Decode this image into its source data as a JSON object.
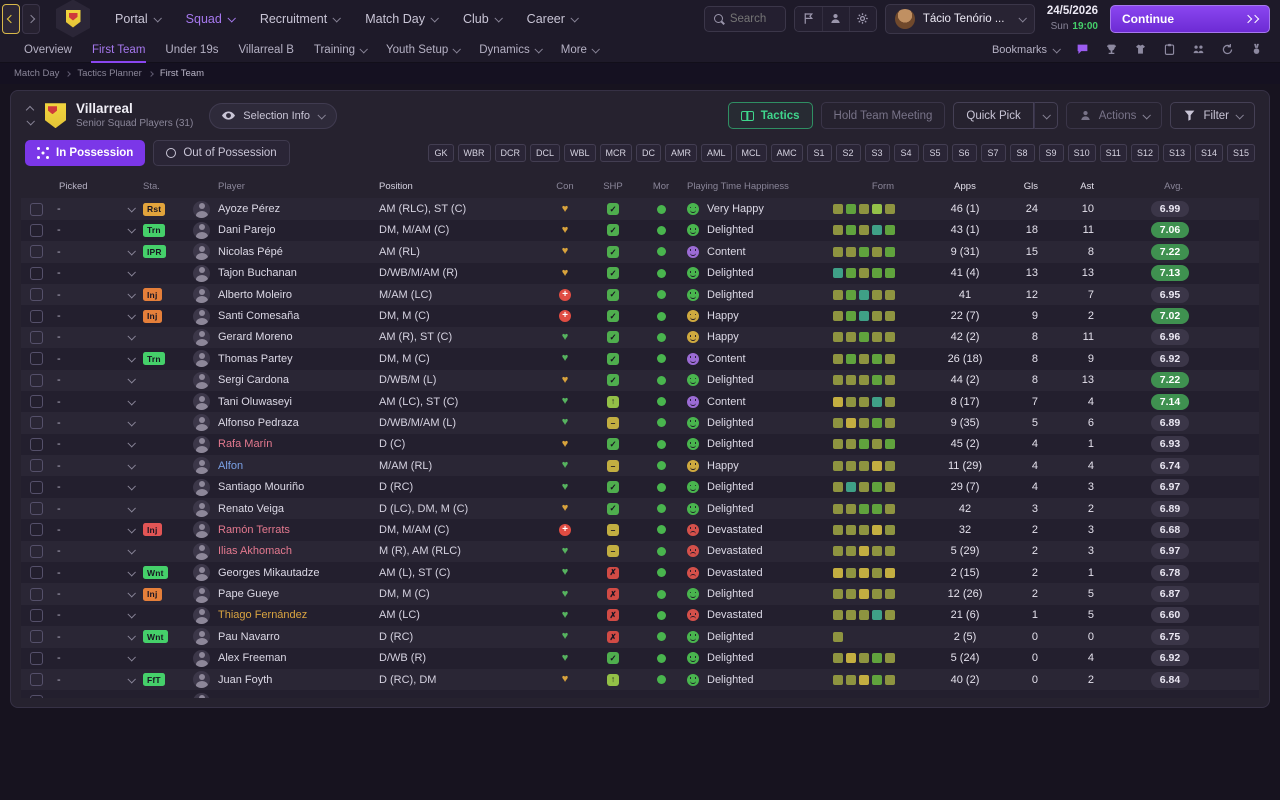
{
  "topbar": {
    "nav": [
      {
        "id": "portal",
        "label": "Portal"
      },
      {
        "id": "squad",
        "label": "Squad",
        "active": true
      },
      {
        "id": "recruitment",
        "label": "Recruitment"
      },
      {
        "id": "match-day",
        "label": "Match Day"
      },
      {
        "id": "club",
        "label": "Club"
      },
      {
        "id": "career",
        "label": "Career"
      }
    ],
    "search_placeholder": "Search",
    "manager_name": "Tácio Tenório ...",
    "date": "24/5/2026",
    "day": "Sun",
    "time": "19:00",
    "continue_label": "Continue"
  },
  "subnav": {
    "items": [
      {
        "id": "overview",
        "label": "Overview"
      },
      {
        "id": "first-team",
        "label": "First Team",
        "active": true
      },
      {
        "id": "under-19s",
        "label": "Under 19s"
      },
      {
        "id": "villarreal-b",
        "label": "Villarreal B"
      },
      {
        "id": "training",
        "label": "Training",
        "menu": true
      },
      {
        "id": "youth-setup",
        "label": "Youth Setup",
        "menu": true
      },
      {
        "id": "dynamics",
        "label": "Dynamics",
        "menu": true
      },
      {
        "id": "more",
        "label": "More",
        "menu": true
      }
    ],
    "bookmarks_label": "Bookmarks"
  },
  "breadcrumb": [
    "Match Day",
    "Tactics Planner",
    "First Team"
  ],
  "panel": {
    "club_name": "Villarreal",
    "subtitle": "Senior Squad Players (31)",
    "selection_info": "Selection Info",
    "tactics": "Tactics",
    "hold_team_meeting": "Hold Team Meeting",
    "quick_pick": "Quick Pick",
    "actions": "Actions",
    "filter": "Filter",
    "tab_in_possession": "In Possession",
    "tab_out_possession": "Out of Possession",
    "position_buttons": [
      "GK",
      "WBR",
      "DCR",
      "DCL",
      "WBL",
      "MCR",
      "DC",
      "AMR",
      "AML",
      "MCL",
      "AMC",
      "S1",
      "S2",
      "S3",
      "S4",
      "S5",
      "S6",
      "S7",
      "S8",
      "S9",
      "S10",
      "S11",
      "S12",
      "S13",
      "S14",
      "S15"
    ]
  },
  "table": {
    "columns": [
      "Picked",
      "Sta.",
      "Player",
      "Position",
      "Con",
      "SHP",
      "Mor",
      "Playing Time Happiness",
      "Form",
      "Apps",
      "Gls",
      "Ast",
      "Avg."
    ],
    "rows": [
      {
        "picked": "-",
        "status": {
          "label": "Rst",
          "color": "#e2a43c"
        },
        "name": "Ayoze Pérez",
        "position": "AM (RLC), ST (C)",
        "con": {
          "type": "heart",
          "color": "#d9a33c"
        },
        "shp": "check",
        "mor": "#49b54e",
        "hap": {
          "label": "Very Happy",
          "color": "#49b54e",
          "face": "smile"
        },
        "form": [
          "#8e9440",
          "#60a33d",
          "#8e9440",
          "#94c149",
          "#8e9440"
        ],
        "apps": "46 (1)",
        "gls": "24",
        "ast": "10",
        "avg": "6.99",
        "avg_hi": false
      },
      {
        "picked": "-",
        "status": {
          "label": "Trn",
          "color": "#45d06a"
        },
        "name": "Dani Parejo",
        "position": "DM, M/AM (C)",
        "con": {
          "type": "heart",
          "color": "#d9a33c"
        },
        "shp": "check",
        "mor": "#49b54e",
        "hap": {
          "label": "Delighted",
          "color": "#49b54e",
          "face": "smile"
        },
        "form": [
          "#8e9440",
          "#60a33d",
          "#8e9440",
          "#3fa087",
          "#60a33d"
        ],
        "apps": "43 (1)",
        "gls": "18",
        "ast": "11",
        "avg": "7.06",
        "avg_hi": true
      },
      {
        "picked": "-",
        "status": {
          "label": "IPR",
          "color": "#45d06a"
        },
        "name": "Nicolas Pépé",
        "position": "AM (RL)",
        "con": {
          "type": "heart",
          "color": "#d9a33c"
        },
        "shp": "check",
        "mor": "#49b54e",
        "hap": {
          "label": "Content",
          "color": "#9b6bd4",
          "face": "smile"
        },
        "form": [
          "#8e9440",
          "#8e9440",
          "#60a33d",
          "#8e9440",
          "#60a33d"
        ],
        "apps": "9 (31)",
        "gls": "15",
        "ast": "8",
        "avg": "7.22",
        "avg_hi": true
      },
      {
        "picked": "-",
        "name": "Tajon Buchanan",
        "position": "D/WB/M/AM (R)",
        "con": {
          "type": "heart",
          "color": "#d9a33c"
        },
        "shp": "check",
        "mor": "#49b54e",
        "hap": {
          "label": "Delighted",
          "color": "#49b54e",
          "face": "smile"
        },
        "form": [
          "#3fa087",
          "#60a33d",
          "#8e9440",
          "#60a33d",
          "#60a33d"
        ],
        "apps": "41 (4)",
        "gls": "13",
        "ast": "13",
        "avg": "7.13",
        "avg_hi": true
      },
      {
        "picked": "-",
        "status": {
          "label": "Inj",
          "color": "#e57f3a"
        },
        "name": "Alberto Moleiro",
        "position": "M/AM (LC)",
        "con": {
          "type": "cross"
        },
        "shp": "check",
        "mor": "#49b54e",
        "hap": {
          "label": "Delighted",
          "color": "#49b54e",
          "face": "smile"
        },
        "form": [
          "#8e9440",
          "#60a33d",
          "#3fa087",
          "#8e9440",
          "#8e9440"
        ],
        "apps": "41",
        "gls": "12",
        "ast": "7",
        "avg": "6.95",
        "avg_hi": false
      },
      {
        "picked": "-",
        "status": {
          "label": "Inj",
          "color": "#e57f3a"
        },
        "name": "Santi Comesaña",
        "position": "DM, M (C)",
        "con": {
          "type": "cross"
        },
        "shp": "check",
        "mor": "#49b54e",
        "hap": {
          "label": "Happy",
          "color": "#cfa93f",
          "face": "smile"
        },
        "form": [
          "#8e9440",
          "#60a33d",
          "#3fa087",
          "#8e9440",
          "#8e9440"
        ],
        "apps": "22 (7)",
        "gls": "9",
        "ast": "2",
        "avg": "7.02",
        "avg_hi": true
      },
      {
        "picked": "-",
        "name": "Gerard Moreno",
        "position": "AM (R), ST (C)",
        "con": {
          "type": "heart",
          "color": "#56b35f"
        },
        "shp": "check",
        "mor": "#49b54e",
        "hap": {
          "label": "Happy",
          "color": "#cfa93f",
          "face": "smile"
        },
        "form": [
          "#8e9440",
          "#8e9440",
          "#60a33d",
          "#8e9440",
          "#8e9440"
        ],
        "apps": "42 (2)",
        "gls": "8",
        "ast": "11",
        "avg": "6.96",
        "avg_hi": false
      },
      {
        "picked": "-",
        "status": {
          "label": "Trn",
          "color": "#45d06a"
        },
        "name": "Thomas Partey",
        "position": "DM, M (C)",
        "con": {
          "type": "heart",
          "color": "#56b35f"
        },
        "shp": "check",
        "mor": "#49b54e",
        "hap": {
          "label": "Content",
          "color": "#9b6bd4",
          "face": "smile"
        },
        "form": [
          "#8e9440",
          "#60a33d",
          "#8e9440",
          "#60a33d",
          "#8e9440"
        ],
        "apps": "26 (18)",
        "gls": "8",
        "ast": "9",
        "avg": "6.92",
        "avg_hi": false
      },
      {
        "picked": "-",
        "name": "Sergi Cardona",
        "position": "D/WB/M (L)",
        "con": {
          "type": "heart",
          "color": "#d9a33c"
        },
        "shp": "check",
        "mor": "#49b54e",
        "hap": {
          "label": "Delighted",
          "color": "#49b54e",
          "face": "smile"
        },
        "form": [
          "#8e9440",
          "#8e9440",
          "#8e9440",
          "#60a33d",
          "#8e9440"
        ],
        "apps": "44 (2)",
        "gls": "8",
        "ast": "13",
        "avg": "7.22",
        "avg_hi": true
      },
      {
        "picked": "-",
        "name": "Tani Oluwaseyi",
        "position": "AM (LC), ST (C)",
        "con": {
          "type": "heart",
          "color": "#56b35f"
        },
        "shp": "up",
        "mor": "#49b54e",
        "hap": {
          "label": "Content",
          "color": "#9b6bd4",
          "face": "smile"
        },
        "form": [
          "#c3ae41",
          "#8e9440",
          "#8e9440",
          "#3fa087",
          "#8e9440"
        ],
        "apps": "8 (17)",
        "gls": "7",
        "ast": "4",
        "avg": "7.14",
        "avg_hi": true
      },
      {
        "picked": "-",
        "name": "Alfonso Pedraza",
        "position": "D/WB/M/AM (L)",
        "con": {
          "type": "heart",
          "color": "#56b35f"
        },
        "shp": "dash",
        "mor": "#49b54e",
        "hap": {
          "label": "Delighted",
          "color": "#49b54e",
          "face": "smile"
        },
        "form": [
          "#8e9440",
          "#c3ae41",
          "#8e9440",
          "#60a33d",
          "#8e9440"
        ],
        "apps": "9 (35)",
        "gls": "5",
        "ast": "6",
        "avg": "6.89",
        "avg_hi": false
      },
      {
        "picked": "-",
        "name": "Rafa Marín",
        "name_color": "#e4798f",
        "position": "D (C)",
        "con": {
          "type": "heart",
          "color": "#d9a33c"
        },
        "shp": "check",
        "mor": "#49b54e",
        "hap": {
          "label": "Delighted",
          "color": "#49b54e",
          "face": "smile"
        },
        "form": [
          "#8e9440",
          "#8e9440",
          "#60a33d",
          "#8e9440",
          "#60a33d"
        ],
        "apps": "45 (2)",
        "gls": "4",
        "ast": "1",
        "avg": "6.93",
        "avg_hi": false
      },
      {
        "picked": "-",
        "name": "Alfon",
        "name_color": "#7aa0e4",
        "position": "M/AM (RL)",
        "con": {
          "type": "heart",
          "color": "#56b35f"
        },
        "shp": "dash",
        "mor": "#49b54e",
        "hap": {
          "label": "Happy",
          "color": "#cfa93f",
          "face": "smile"
        },
        "form": [
          "#8e9440",
          "#8e9440",
          "#8e9440",
          "#c3ae41",
          "#8e9440"
        ],
        "apps": "11 (29)",
        "gls": "4",
        "ast": "4",
        "avg": "6.74",
        "avg_hi": false
      },
      {
        "picked": "-",
        "name": "Santiago Mouriño",
        "position": "D (RC)",
        "con": {
          "type": "heart",
          "color": "#56b35f"
        },
        "shp": "check",
        "mor": "#49b54e",
        "hap": {
          "label": "Delighted",
          "color": "#49b54e",
          "face": "smile"
        },
        "form": [
          "#8e9440",
          "#3fa087",
          "#8e9440",
          "#60a33d",
          "#8e9440"
        ],
        "apps": "29 (7)",
        "gls": "4",
        "ast": "3",
        "avg": "6.97",
        "avg_hi": false
      },
      {
        "picked": "-",
        "name": "Renato Veiga",
        "position": "D (LC), DM, M (C)",
        "con": {
          "type": "heart",
          "color": "#d9a33c"
        },
        "shp": "check",
        "mor": "#49b54e",
        "hap": {
          "label": "Delighted",
          "color": "#49b54e",
          "face": "smile"
        },
        "form": [
          "#8e9440",
          "#8e9440",
          "#60a33d",
          "#60a33d",
          "#8e9440"
        ],
        "apps": "42",
        "gls": "3",
        "ast": "2",
        "avg": "6.89",
        "avg_hi": false
      },
      {
        "picked": "-",
        "status": {
          "label": "Inj",
          "color": "#e25555"
        },
        "name": "Ramón Terrats",
        "name_color": "#e4798f",
        "position": "DM, M/AM (C)",
        "con": {
          "type": "cross"
        },
        "shp": "dash",
        "mor": "#49b54e",
        "hap": {
          "label": "Devastated",
          "color": "#d4504a",
          "face": "frown"
        },
        "form": [
          "#8e9440",
          "#8e9440",
          "#8e9440",
          "#c3ae41",
          "#8e9440"
        ],
        "apps": "32",
        "gls": "2",
        "ast": "3",
        "avg": "6.68",
        "avg_hi": false
      },
      {
        "picked": "-",
        "name": "Ilias Akhomach",
        "name_color": "#e4798f",
        "position": "M (R), AM (RLC)",
        "con": {
          "type": "heart",
          "color": "#56b35f"
        },
        "shp": "dash",
        "mor": "#49b54e",
        "hap": {
          "label": "Devastated",
          "color": "#d4504a",
          "face": "frown"
        },
        "form": [
          "#8e9440",
          "#8e9440",
          "#c3ae41",
          "#8e9440",
          "#8e9440"
        ],
        "apps": "5 (29)",
        "gls": "2",
        "ast": "3",
        "avg": "6.97",
        "avg_hi": false
      },
      {
        "picked": "-",
        "status": {
          "label": "Wnt",
          "color": "#45d06a"
        },
        "name": "Georges Mikautadze",
        "position": "AM (L), ST (C)",
        "con": {
          "type": "heart",
          "color": "#56b35f"
        },
        "shp": "cross",
        "mor": "#49b54e",
        "hap": {
          "label": "Devastated",
          "color": "#d4504a",
          "face": "frown"
        },
        "form": [
          "#c3ae41",
          "#8e9440",
          "#c3ae41",
          "#8e9440",
          "#c3ae41"
        ],
        "apps": "2 (15)",
        "gls": "2",
        "ast": "1",
        "avg": "6.78",
        "avg_hi": false
      },
      {
        "picked": "-",
        "status": {
          "label": "Inj",
          "color": "#e57f3a"
        },
        "name": "Pape Gueye",
        "position": "DM, M (C)",
        "con": {
          "type": "heart",
          "color": "#56b35f"
        },
        "shp": "cross",
        "mor": "#49b54e",
        "hap": {
          "label": "Delighted",
          "color": "#49b54e",
          "face": "smile"
        },
        "form": [
          "#8e9440",
          "#8e9440",
          "#c3ae41",
          "#8e9440",
          "#8e9440"
        ],
        "apps": "12 (26)",
        "gls": "2",
        "ast": "5",
        "avg": "6.87",
        "avg_hi": false
      },
      {
        "picked": "-",
        "name": "Thiago Fernández",
        "name_color": "#d9a441",
        "position": "AM (LC)",
        "con": {
          "type": "heart",
          "color": "#56b35f"
        },
        "shp": "cross",
        "mor": "#49b54e",
        "hap": {
          "label": "Devastated",
          "color": "#d4504a",
          "face": "frown"
        },
        "form": [
          "#8e9440",
          "#8e9440",
          "#8e9440",
          "#3fa087",
          "#8e9440"
        ],
        "apps": "21 (6)",
        "gls": "1",
        "ast": "5",
        "avg": "6.60",
        "avg_hi": false
      },
      {
        "picked": "-",
        "status": {
          "label": "Wnt",
          "color": "#45d06a"
        },
        "name": "Pau Navarro",
        "position": "D (RC)",
        "con": {
          "type": "heart",
          "color": "#56b35f"
        },
        "shp": "cross",
        "mor": "#49b54e",
        "hap": {
          "label": "Delighted",
          "color": "#49b54e",
          "face": "smile"
        },
        "form": [
          "#8e9440"
        ],
        "apps": "2 (5)",
        "gls": "0",
        "ast": "0",
        "avg": "6.75",
        "avg_hi": false
      },
      {
        "picked": "-",
        "name": "Alex Freeman",
        "position": "D/WB (R)",
        "con": {
          "type": "heart",
          "color": "#56b35f"
        },
        "shp": "check",
        "mor": "#49b54e",
        "hap": {
          "label": "Delighted",
          "color": "#49b54e",
          "face": "smile"
        },
        "form": [
          "#8e9440",
          "#c3ae41",
          "#8e9440",
          "#60a33d",
          "#8e9440"
        ],
        "apps": "5 (24)",
        "gls": "0",
        "ast": "4",
        "avg": "6.92",
        "avg_hi": false
      },
      {
        "picked": "-",
        "status": {
          "label": "FfT",
          "color": "#45d06a"
        },
        "name": "Juan Foyth",
        "position": "D (RC), DM",
        "con": {
          "type": "heart",
          "color": "#d9a33c"
        },
        "shp": "up",
        "mor": "#49b54e",
        "hap": {
          "label": "Delighted",
          "color": "#49b54e",
          "face": "smile"
        },
        "form": [
          "#8e9440",
          "#8e9440",
          "#c3ae41",
          "#60a33d",
          "#8e9440"
        ],
        "apps": "40 (2)",
        "gls": "0",
        "ast": "2",
        "avg": "6.84",
        "avg_hi": false
      },
      {
        "partial": true,
        "picked": "-",
        "name": "",
        "position": "",
        "shp": "none",
        "mor": "",
        "hap": {
          "label": "",
          "color": "",
          "face": "smile"
        },
        "form": [],
        "apps": "",
        "gls": "",
        "ast": "",
        "avg": "",
        "avg_hi": false
      }
    ]
  }
}
